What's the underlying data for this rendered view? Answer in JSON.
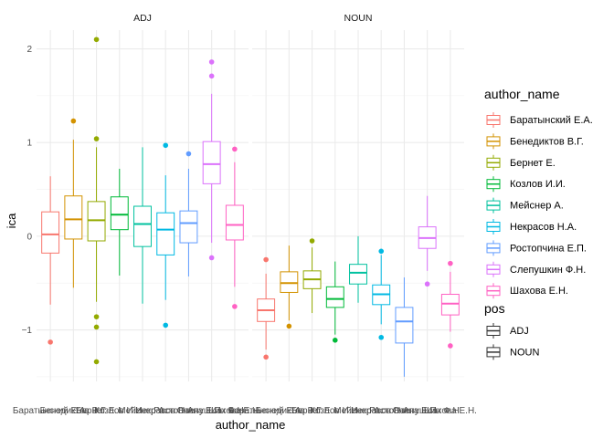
{
  "chart_data": {
    "type": "boxplot",
    "facets": [
      "ADJ",
      "NOUN"
    ],
    "xlabel": "author_name",
    "ylabel": "ica",
    "ylim": [
      -1.55,
      2.2
    ],
    "yticks": [
      -1,
      0,
      1,
      2
    ],
    "grid": true,
    "legend_placement": "right",
    "categories": [
      "Баратынский Е.А.",
      "Бенедиктов В.Г.",
      "Бернет Е.",
      "Козлов И.И.",
      "Мейснер А.",
      "Некрасов Н.А.",
      "Ростопчина Е.П.",
      "Слепушкин Ф.Н.",
      "Шахова Е.Н."
    ],
    "colors": [
      "#F8766D",
      "#D39200",
      "#93AA00",
      "#00BA38",
      "#00C19F",
      "#00B9E3",
      "#619CFF",
      "#DB72FB",
      "#FF61C3"
    ],
    "legend_color_title": "author_name",
    "legend_linetype_title": "pos",
    "legend_linetype_items": [
      "ADJ",
      "NOUN"
    ],
    "series": [
      {
        "facet": "ADJ",
        "boxes": [
          {
            "author": "Баратынский Е.А.",
            "min": -0.73,
            "q1": -0.18,
            "median": 0.02,
            "q3": 0.26,
            "max": 0.64,
            "outliers": [
              -1.13
            ]
          },
          {
            "author": "Бенедиктов В.Г.",
            "min": -0.55,
            "q1": -0.03,
            "median": 0.18,
            "q3": 0.43,
            "max": 1.03,
            "outliers": [
              1.23
            ]
          },
          {
            "author": "Бернет Е.",
            "min": -0.7,
            "q1": -0.05,
            "median": 0.17,
            "q3": 0.37,
            "max": 0.95,
            "outliers": [
              2.1,
              1.04,
              -0.86,
              -0.97,
              -1.34
            ]
          },
          {
            "author": "Козлов И.И.",
            "min": -0.42,
            "q1": 0.07,
            "median": 0.23,
            "q3": 0.42,
            "max": 0.72,
            "outliers": []
          },
          {
            "author": "Мейснер А.",
            "min": -0.72,
            "q1": -0.11,
            "median": 0.13,
            "q3": 0.32,
            "max": 0.95,
            "outliers": []
          },
          {
            "author": "Некрасов Н.А.",
            "min": -0.68,
            "q1": -0.2,
            "median": 0.07,
            "q3": 0.25,
            "max": 0.65,
            "outliers": [
              0.97,
              -0.95
            ]
          },
          {
            "author": "Ростопчина Е.П.",
            "min": -0.43,
            "q1": -0.07,
            "median": 0.14,
            "q3": 0.27,
            "max": 0.72,
            "outliers": [
              0.88
            ]
          },
          {
            "author": "Слепушкин Ф.Н.",
            "min": -0.07,
            "q1": 0.56,
            "median": 0.77,
            "q3": 1.01,
            "max": 1.52,
            "outliers": [
              1.86,
              1.71,
              -0.23
            ]
          },
          {
            "author": "Шахова Е.Н.",
            "min": -0.54,
            "q1": -0.04,
            "median": 0.12,
            "q3": 0.33,
            "max": 0.79,
            "outliers": [
              0.93,
              -0.75
            ]
          }
        ]
      },
      {
        "facet": "NOUN",
        "boxes": [
          {
            "author": "Баратынский Е.А.",
            "min": -1.21,
            "q1": -0.91,
            "median": -0.79,
            "q3": -0.67,
            "max": -0.4,
            "outliers": [
              -0.25,
              -1.29
            ]
          },
          {
            "author": "Бенедиктов В.Г.",
            "min": -0.9,
            "q1": -0.6,
            "median": -0.5,
            "q3": -0.38,
            "max": -0.1,
            "outliers": [
              -0.96
            ]
          },
          {
            "author": "Бернет Е.",
            "min": -0.82,
            "q1": -0.56,
            "median": -0.46,
            "q3": -0.37,
            "max": -0.12,
            "outliers": [
              -0.05
            ]
          },
          {
            "author": "Козлов И.И.",
            "min": -1.05,
            "q1": -0.76,
            "median": -0.67,
            "q3": -0.54,
            "max": -0.27,
            "outliers": [
              -1.11
            ]
          },
          {
            "author": "Мейснер А.",
            "min": -0.71,
            "q1": -0.51,
            "median": -0.39,
            "q3": -0.3,
            "max": 0.0,
            "outliers": []
          },
          {
            "author": "Некрасов Н.А.",
            "min": -0.94,
            "q1": -0.73,
            "median": -0.62,
            "q3": -0.52,
            "max": -0.2,
            "outliers": [
              -0.16,
              -1.08
            ]
          },
          {
            "author": "Ростопчина Е.П.",
            "min": -1.5,
            "q1": -1.14,
            "median": -0.91,
            "q3": -0.76,
            "max": -0.44,
            "outliers": []
          },
          {
            "author": "Слепушкин Ф.Н.",
            "min": -0.37,
            "q1": -0.13,
            "median": -0.02,
            "q3": 0.1,
            "max": 0.43,
            "outliers": [
              -0.51
            ]
          },
          {
            "author": "Шахова Е.Н.",
            "min": -1.02,
            "q1": -0.84,
            "median": -0.72,
            "q3": -0.62,
            "max": -0.38,
            "outliers": [
              -0.29,
              -1.17
            ]
          }
        ]
      }
    ]
  }
}
